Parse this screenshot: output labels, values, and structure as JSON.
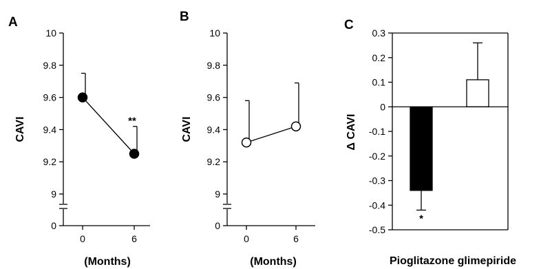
{
  "chart_data": [
    {
      "type": "line",
      "panel": "A",
      "ylabel": "CAVI",
      "xlabel": "(Months)",
      "x": [
        0,
        6
      ],
      "y_ticks": [
        "0",
        "9",
        "9.2",
        "9.4",
        "9.6",
        "9.8",
        "10"
      ],
      "x_ticks": [
        "0",
        "6"
      ],
      "ylim": [
        9,
        10
      ],
      "axis_break": true,
      "marker": "filled-circle",
      "series": [
        {
          "values": [
            9.6,
            9.25
          ],
          "error_upper": [
            9.75,
            9.42
          ]
        }
      ],
      "annotations": [
        {
          "x": 6,
          "text": "**"
        }
      ]
    },
    {
      "type": "line",
      "panel": "B",
      "ylabel": "CAVI",
      "xlabel": "(Months)",
      "x": [
        0,
        6
      ],
      "y_ticks": [
        "0",
        "9",
        "9.2",
        "9.4",
        "9.6",
        "9.8",
        "10"
      ],
      "x_ticks": [
        "0",
        "6"
      ],
      "ylim": [
        9,
        10
      ],
      "axis_break": true,
      "marker": "open-circle",
      "series": [
        {
          "values": [
            9.32,
            9.42
          ],
          "error_upper": [
            9.58,
            9.69
          ]
        }
      ]
    },
    {
      "type": "bar",
      "panel": "C",
      "ylabel": "Δ CAVI",
      "xlabel": "Pioglitazone glimepiride",
      "categories": [
        "Pioglitazone",
        "glimepiride"
      ],
      "values": [
        -0.34,
        0.11
      ],
      "error": [
        0.08,
        0.15
      ],
      "bar_colors": [
        "#000000",
        "#ffffff"
      ],
      "ylim": [
        -0.5,
        0.3
      ],
      "y_ticks": [
        "0.3",
        "0.2",
        "0.1",
        "0",
        "-0.1",
        "-0.2",
        "-0.3",
        "-0.4",
        "-0.5"
      ],
      "annotations": [
        {
          "category": 0,
          "text": "*"
        }
      ]
    }
  ]
}
